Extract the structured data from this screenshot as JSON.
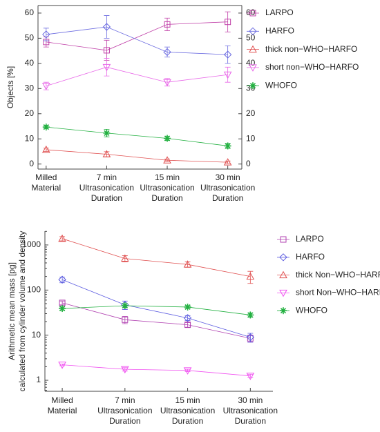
{
  "chart_data": [
    {
      "type": "line",
      "ylabel": "Objects [%]",
      "categories": [
        [
          "Milled",
          "Material"
        ],
        [
          "7 min",
          "Ultrasonication",
          "Duration"
        ],
        [
          "15 min",
          "Ultrasonication",
          "Duration"
        ],
        [
          "30 min",
          "Ultrasonication",
          "Duration"
        ]
      ],
      "ylim": [
        -2,
        63
      ],
      "yticks": [
        0,
        10,
        20,
        30,
        40,
        50,
        60
      ],
      "log": false,
      "right_axis": true,
      "series": [
        {
          "name": "LARPO",
          "color": "#c040a8",
          "values": [
            48.5,
            45.2,
            55.5,
            56.5
          ],
          "errors": [
            2,
            4,
            2.5,
            4
          ]
        },
        {
          "name": "HARFO",
          "color": "#6a6ae0",
          "values": [
            51.5,
            54.5,
            44.5,
            43.5
          ],
          "errors": [
            2.5,
            4.5,
            2,
            3.5
          ]
        },
        {
          "name": "thick non−WHO−HARFO",
          "color": "#e05050",
          "values": [
            5.7,
            3.9,
            1.5,
            0.7
          ],
          "errors": [
            0.7,
            1,
            0.5,
            0.5
          ]
        },
        {
          "name": "short non−WHO−HARFO",
          "color": "#e868e8",
          "values": [
            31,
            38.5,
            32.5,
            35.5
          ],
          "errors": [
            1.5,
            3.5,
            1.5,
            3
          ]
        },
        {
          "name": "WHOFO",
          "color": "#22b040",
          "values": [
            14.7,
            12.3,
            10.2,
            7.2
          ],
          "errors": [
            0.7,
            1.5,
            0.8,
            1
          ]
        }
      ]
    },
    {
      "type": "line",
      "ylabel": [
        "Arithmetic mean mass [pg]",
        "calculated from cylinder volume and density"
      ],
      "categories": [
        [
          "Milled",
          "Material"
        ],
        [
          "7 min",
          "Ultrasonication",
          "Duration"
        ],
        [
          "15 min",
          "Ultrasonication",
          "Duration"
        ],
        [
          "30 min",
          "Ultrasonication",
          "Duration"
        ]
      ],
      "ylim": [
        0.57,
        2020
      ],
      "yticks": [
        1,
        10,
        100,
        1000
      ],
      "log": true,
      "right_axis": false,
      "series": [
        {
          "name": "LARPO",
          "color": "#b040b0",
          "values": [
            52,
            22,
            17,
            8.5
          ],
          "errors": [
            5,
            4,
            2,
            1.5
          ]
        },
        {
          "name": "HARFO",
          "color": "#5a5ae0",
          "values": [
            170,
            47,
            24,
            9
          ],
          "errors": [
            25,
            10,
            3,
            2
          ]
        },
        {
          "name": "thick Non−WHO−HARFO",
          "color": "#e05050",
          "values": [
            1380,
            500,
            370,
            200
          ],
          "errors": [
            150,
            80,
            50,
            60
          ]
        },
        {
          "name": "short Non−WHO−HARFO",
          "color": "#f050f0",
          "values": [
            2.2,
            1.75,
            1.65,
            1.25
          ],
          "errors": [
            0.1,
            0.15,
            0.1,
            0.1
          ]
        },
        {
          "name": "WHOFO",
          "color": "#22b040",
          "values": [
            39,
            45,
            42,
            28
          ],
          "errors": [
            3,
            4,
            3,
            3
          ]
        }
      ]
    }
  ]
}
